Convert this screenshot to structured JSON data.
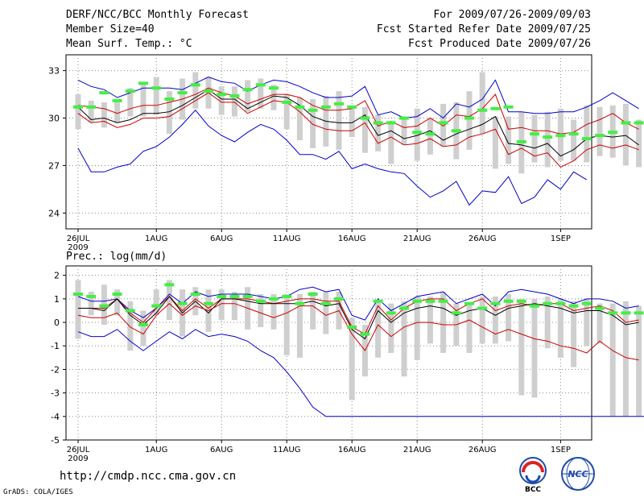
{
  "header": {
    "title": "DERF/NCC/BCC Monthly Forecast",
    "member_size": "Member Size=40",
    "variable": "Mean Surf. Temp.: °C",
    "forecast_period": "For 2009/07/26-2009/09/03",
    "started_date": "Fcst Started Refer Date 2009/07/25",
    "produced_date": "Fcst Produced Date 2009/07/26"
  },
  "footer": {
    "url": "http://cmdp.ncc.cma.gov.cn",
    "credit": "GrADS: COLA/IGES",
    "logo_bcc": "BCC",
    "logo_ncc": "NCC"
  },
  "colors": {
    "envelope": "#0000cc",
    "spread": "#cc0000",
    "mean": "#000000",
    "box": "#cfcfcf",
    "marker": "#44ee44",
    "grid": "#888888"
  },
  "chart_data": [
    {
      "type": "line",
      "title": "Mean Surf. Temp.: °C",
      "x_start_day": 26,
      "n": 40,
      "xticks": [
        {
          "label": "26JUL",
          "day": 26
        },
        {
          "label": "1AUG",
          "day": 32
        },
        {
          "label": "6AUG",
          "day": 37
        },
        {
          "label": "11AUG",
          "day": 42
        },
        {
          "label": "16AUG",
          "day": 47
        },
        {
          "label": "21AUG",
          "day": 52
        },
        {
          "label": "26AUG",
          "day": 57
        },
        {
          "label": "1SEP",
          "day": 63
        }
      ],
      "x_year_label": "2009",
      "ylim": [
        23,
        34
      ],
      "yticks": [
        24,
        27,
        30,
        33
      ],
      "series": [
        {
          "name": "max",
          "values": [
            32.4,
            32.0,
            31.8,
            31.3,
            31.6,
            31.9,
            31.9,
            31.9,
            31.8,
            32.2,
            32.6,
            32.3,
            32.2,
            31.7,
            32.1,
            32.4,
            32.3,
            32.0,
            31.6,
            31.3,
            31.3,
            31.4,
            32.0,
            30.2,
            30.4,
            30.0,
            30.1,
            30.6,
            30.0,
            30.9,
            30.7,
            31.2,
            32.4,
            30.4,
            30.4,
            30.3,
            30.3,
            30.4,
            30.4,
            30.7,
            31.1,
            31.6,
            31.1,
            30.6
          ]
        },
        {
          "name": "upper",
          "values": [
            30.8,
            30.7,
            30.6,
            30.3,
            30.6,
            30.8,
            30.8,
            31.0,
            31.2,
            31.5,
            31.9,
            31.6,
            31.4,
            30.9,
            31.2,
            31.5,
            31.5,
            31.3,
            30.8,
            30.5,
            30.5,
            30.6,
            31.1,
            29.5,
            29.8,
            29.4,
            29.5,
            30.0,
            29.5,
            30.2,
            30.1,
            30.6,
            31.5,
            29.3,
            29.4,
            29.2,
            29.2,
            29.0,
            29.1,
            29.6,
            29.9,
            30.3,
            29.7,
            29.3
          ]
        },
        {
          "name": "mean",
          "values": [
            30.7,
            29.9,
            30.0,
            29.7,
            29.9,
            30.3,
            30.3,
            30.4,
            30.8,
            31.3,
            31.8,
            31.2,
            31.2,
            30.6,
            31.0,
            31.4,
            31.3,
            30.8,
            30.1,
            29.8,
            29.7,
            29.7,
            30.2,
            28.9,
            29.2,
            28.7,
            28.9,
            29.2,
            28.6,
            29.0,
            29.3,
            29.6,
            30.1,
            28.4,
            28.3,
            28.1,
            28.4,
            27.6,
            28.0,
            28.7,
            28.9,
            28.8,
            28.9,
            28.3
          ]
        },
        {
          "name": "lower",
          "values": [
            30.3,
            29.7,
            29.8,
            29.4,
            29.6,
            30.0,
            30.0,
            30.1,
            30.6,
            31.1,
            31.6,
            31.0,
            31.0,
            30.3,
            30.7,
            31.1,
            31.0,
            30.4,
            29.6,
            29.3,
            29.2,
            29.2,
            29.7,
            28.4,
            28.8,
            28.3,
            28.4,
            28.7,
            28.2,
            28.3,
            28.8,
            29.0,
            29.3,
            27.7,
            28.1,
            27.6,
            27.8,
            26.9,
            27.3,
            28.0,
            28.3,
            28.1,
            28.3,
            28.0
          ]
        },
        {
          "name": "min",
          "values": [
            28.1,
            26.6,
            26.6,
            26.9,
            27.1,
            27.9,
            28.2,
            28.8,
            29.6,
            30.5,
            29.5,
            28.9,
            28.5,
            29.1,
            29.6,
            29.3,
            28.6,
            27.7,
            27.7,
            27.4,
            27.9,
            26.8,
            27.1,
            26.8,
            26.6,
            26.5,
            25.7,
            25.0,
            25.4,
            26.0,
            24.5,
            25.4,
            25.3,
            26.3,
            24.6,
            25.0,
            26.1,
            25.5,
            26.6,
            26.1
          ]
        },
        {
          "name": "member_markers",
          "values": [
            30.7,
            30.7,
            31.6,
            31.1,
            31.7,
            32.2,
            31.9,
            31.2,
            31.6,
            32.1,
            31.7,
            31.5,
            31.4,
            31.8,
            32.1,
            31.9,
            31.0,
            30.7,
            30.5,
            30.7,
            30.9,
            30.7,
            30.0,
            29.7,
            29.7,
            30.0,
            29.1,
            29.0,
            29.7,
            29.2,
            30.0,
            30.5,
            30.6,
            30.7,
            28.5,
            29.0,
            28.8,
            28.9,
            29.0,
            28.7,
            28.9,
            29.1,
            29.7,
            29.7,
            29.0
          ]
        }
      ],
      "boxes": [
        [
          29.3,
          31.5
        ],
        [
          29.7,
          31.1
        ],
        [
          29.4,
          31.0
        ],
        [
          29.7,
          31.1
        ],
        [
          30.1,
          31.9
        ],
        [
          30.1,
          32.1
        ],
        [
          30.2,
          32.6
        ],
        [
          29.0,
          31.7
        ],
        [
          29.9,
          32.5
        ],
        [
          30.6,
          32.9
        ],
        [
          30.6,
          32.6
        ],
        [
          30.2,
          32.0
        ],
        [
          30.1,
          32.0
        ],
        [
          30.4,
          32.4
        ],
        [
          30.6,
          32.5
        ],
        [
          30.5,
          32.1
        ],
        [
          29.3,
          31.5
        ],
        [
          28.6,
          31.3
        ],
        [
          28.1,
          31.2
        ],
        [
          28.2,
          31.4
        ],
        [
          28.0,
          31.7
        ],
        [
          28.8,
          30.7
        ],
        [
          27.8,
          30.7
        ],
        [
          27.9,
          30.2
        ],
        [
          27.1,
          29.6
        ],
        [
          28.3,
          30.0
        ],
        [
          27.3,
          30.6
        ],
        [
          27.7,
          30.0
        ],
        [
          28.2,
          30.9
        ],
        [
          27.4,
          31.0
        ],
        [
          28.0,
          31.7
        ],
        [
          29.0,
          32.9
        ],
        [
          26.8,
          30.1
        ],
        [
          27.1,
          30.1
        ],
        [
          26.5,
          30.4
        ],
        [
          27.2,
          30.2
        ],
        [
          26.9,
          30.4
        ],
        [
          27.3,
          30.6
        ],
        [
          27.3,
          29.9
        ],
        [
          27.2,
          30.8
        ],
        [
          27.6,
          30.7
        ],
        [
          27.5,
          30.8
        ],
        [
          27.0,
          30.9
        ],
        [
          26.9,
          29.9
        ]
      ]
    },
    {
      "type": "line",
      "title": "Prec.: log(mm/d)",
      "x_start_day": 26,
      "n": 40,
      "xticks": [
        {
          "label": "26JUL",
          "day": 26
        },
        {
          "label": "1AUG",
          "day": 32
        },
        {
          "label": "6AUG",
          "day": 37
        },
        {
          "label": "11AUG",
          "day": 42
        },
        {
          "label": "16AUG",
          "day": 47
        },
        {
          "label": "21AUG",
          "day": 52
        },
        {
          "label": "26AUG",
          "day": 57
        },
        {
          "label": "1SEP",
          "day": 63
        }
      ],
      "x_year_label": "2009",
      "ylim": [
        -5,
        2.4
      ],
      "yticks": [
        -5,
        -4,
        -3,
        -2,
        -1,
        0,
        1,
        2
      ],
      "series": [
        {
          "name": "max",
          "values": [
            1.1,
            0.9,
            0.9,
            1.0,
            0.5,
            0.2,
            0.6,
            1.2,
            0.8,
            1.3,
            1.1,
            1.2,
            1.2,
            1.2,
            1.1,
            1.0,
            1.1,
            1.4,
            1.5,
            1.3,
            1.4,
            0.3,
            0.1,
            1.0,
            0.5,
            0.8,
            1.1,
            1.2,
            1.3,
            0.8,
            1.0,
            1.2,
            0.7,
            1.3,
            1.4,
            1.3,
            1.2,
            1.0,
            0.8,
            1.0,
            1.0,
            0.9,
            0.6,
            0.7
          ]
        },
        {
          "name": "upper",
          "values": [
            0.6,
            0.6,
            0.6,
            1.0,
            0.4,
            0.0,
            0.6,
            1.1,
            0.5,
            1.0,
            0.6,
            1.0,
            1.0,
            1.0,
            0.9,
            0.8,
            0.9,
            1.0,
            1.0,
            0.9,
            0.9,
            -0.2,
            -0.5,
            0.7,
            0.1,
            0.6,
            0.9,
            1.0,
            1.0,
            0.5,
            0.8,
            1.0,
            0.5,
            0.7,
            0.8,
            0.7,
            0.8,
            0.8,
            0.5,
            0.6,
            0.7,
            0.5,
            0.0,
            0.1
          ]
        },
        {
          "name": "mean",
          "values": [
            0.6,
            0.6,
            0.5,
            1.0,
            0.3,
            -0.1,
            0.4,
            1.1,
            0.4,
            0.9,
            0.4,
            1.0,
            1.0,
            0.9,
            0.8,
            0.8,
            0.8,
            0.8,
            0.9,
            0.7,
            0.8,
            -0.3,
            -0.7,
            0.5,
            0.0,
            0.4,
            0.6,
            0.7,
            0.6,
            0.3,
            0.5,
            0.6,
            0.3,
            0.6,
            0.7,
            0.8,
            0.7,
            0.6,
            0.4,
            0.5,
            0.5,
            0.3,
            -0.1,
            0.0
          ]
        },
        {
          "name": "lower",
          "values": [
            0.3,
            0.2,
            0.2,
            0.4,
            -0.2,
            -0.5,
            0.3,
            0.8,
            0.3,
            0.7,
            0.5,
            0.8,
            0.8,
            0.6,
            0.4,
            0.2,
            0.4,
            0.7,
            0.7,
            0.3,
            0.5,
            -0.5,
            -1.2,
            -0.1,
            -0.6,
            -0.2,
            0.0,
            0.0,
            -0.1,
            -0.1,
            0.1,
            -0.2,
            -0.5,
            -0.3,
            -0.5,
            -0.7,
            -0.8,
            -1.0,
            -1.1,
            -1.3,
            -0.8,
            -1.2,
            -1.5,
            -1.6
          ]
        },
        {
          "name": "min",
          "values": [
            -0.4,
            -0.6,
            -0.6,
            -0.3,
            -0.8,
            -1.2,
            -0.8,
            -0.4,
            -0.7,
            -0.3,
            -0.6,
            -0.5,
            -0.6,
            -0.8,
            -1.2,
            -1.5,
            -2.1,
            -2.8,
            -3.6,
            -4.0,
            -4.0,
            -4.0,
            -4.0,
            -4.0,
            -4.0,
            -4.0,
            -4.0,
            -4.0,
            -4.0,
            -4.0,
            -4.0,
            -4.0,
            -4.0,
            -4.0,
            -4.0,
            -4.0,
            -4.0,
            -4.0,
            -4.0,
            -4.0,
            -4.0,
            -4.0,
            -4.0,
            -4.0,
            -4.0
          ]
        },
        {
          "name": "member_markers",
          "values": [
            1.2,
            1.1,
            0.7,
            1.2,
            0.5,
            -0.1,
            0.7,
            1.6,
            0.8,
            1.2,
            0.8,
            1.1,
            1.1,
            1.1,
            0.9,
            1.0,
            1.1,
            0.8,
            1.2,
            0.8,
            1.0,
            -0.2,
            -0.5,
            0.9,
            0.4,
            0.6,
            0.9,
            0.9,
            0.9,
            0.4,
            0.8,
            0.6,
            0.8,
            0.9,
            0.9,
            0.7,
            0.8,
            0.8,
            0.7,
            0.8,
            0.6,
            0.4,
            0.4,
            0.4
          ]
        }
      ],
      "boxes": [
        [
          -0.7,
          1.8
        ],
        [
          0.3,
          1.3
        ],
        [
          -0.1,
          1.6
        ],
        [
          0.3,
          1.4
        ],
        [
          -1.2,
          0.9
        ],
        [
          -1.0,
          0.5
        ],
        [
          0.3,
          1.4
        ],
        [
          0.1,
          1.8
        ],
        [
          -0.6,
          1.4
        ],
        [
          0.3,
          1.5
        ],
        [
          -0.4,
          1.4
        ],
        [
          0.1,
          1.4
        ],
        [
          0.1,
          1.3
        ],
        [
          -0.3,
          1.5
        ],
        [
          -0.2,
          1.2
        ],
        [
          -0.3,
          1.2
        ],
        [
          -1.4,
          1.2
        ],
        [
          -1.5,
          1.2
        ],
        [
          -0.3,
          1.3
        ],
        [
          -0.5,
          1.3
        ],
        [
          -0.3,
          1.3
        ],
        [
          -3.3,
          0.2
        ],
        [
          -2.3,
          -0.1
        ],
        [
          -1.5,
          0.9
        ],
        [
          -1.3,
          0.8
        ],
        [
          -2.3,
          0.9
        ],
        [
          -1.6,
          1.1
        ],
        [
          -0.9,
          1.1
        ],
        [
          -1.3,
          1.3
        ],
        [
          -1.0,
          0.8
        ],
        [
          -1.3,
          0.8
        ],
        [
          -0.9,
          1.1
        ],
        [
          -0.9,
          1.1
        ],
        [
          -0.8,
          1.2
        ],
        [
          -3.1,
          1.0
        ],
        [
          -3.2,
          1.0
        ],
        [
          -1.1,
          1.1
        ],
        [
          -1.5,
          1.0
        ],
        [
          -1.9,
          0.9
        ],
        [
          -1.0,
          1.0
        ],
        [
          -0.9,
          0.8
        ],
        [
          -4.0,
          0.8
        ],
        [
          -4.0,
          0.9
        ],
        [
          -4.0,
          0.7
        ]
      ]
    }
  ]
}
